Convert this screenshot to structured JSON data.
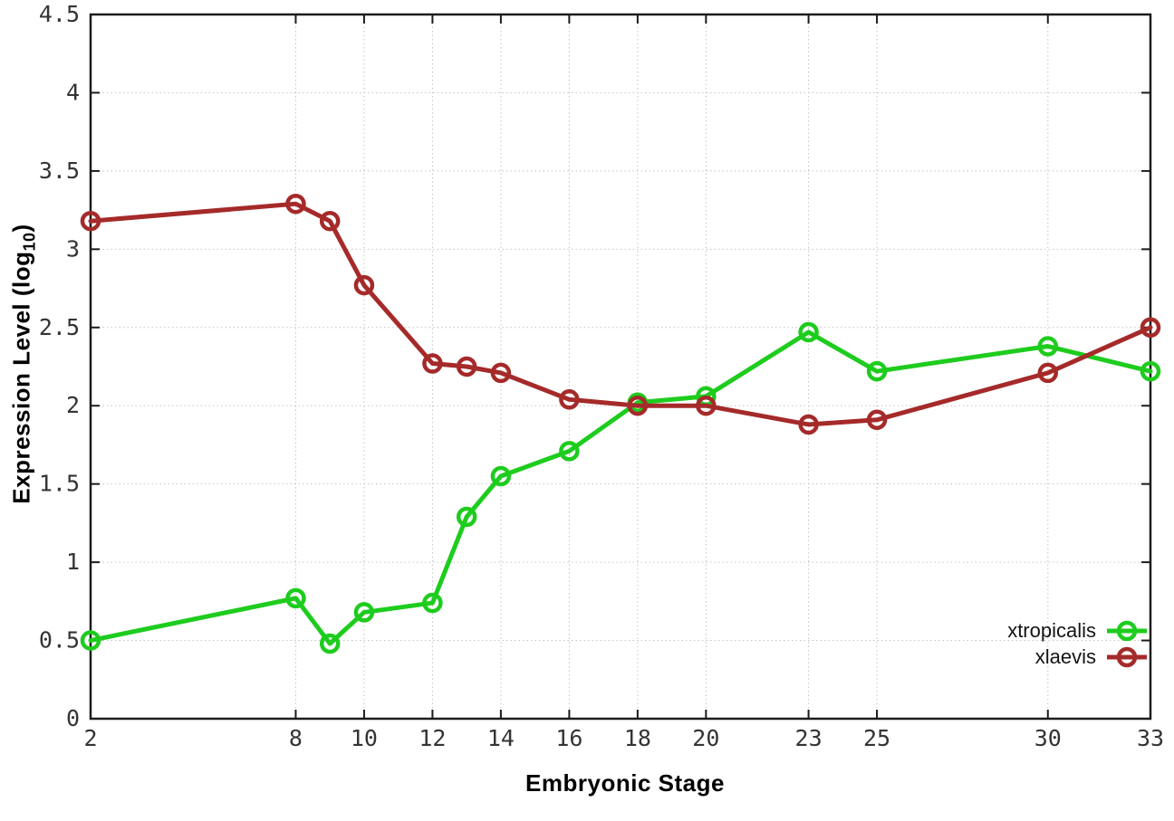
{
  "chart_data": {
    "type": "line",
    "title": "",
    "xlabel": "Embryonic Stage",
    "ylabel_parts": {
      "pre": "Expression Level (log",
      "sub": "10",
      "post": ")"
    },
    "xlim": [
      2,
      33
    ],
    "ylim": [
      0,
      4.5
    ],
    "grid": true,
    "legend_position": "inside bottom-right",
    "x_ticks": [
      {
        "value": 2,
        "label": "2"
      },
      {
        "value": 8,
        "label": "8"
      },
      {
        "value": 10,
        "label": "10"
      },
      {
        "value": 12,
        "label": "12"
      },
      {
        "value": 14,
        "label": "14"
      },
      {
        "value": 16,
        "label": "16"
      },
      {
        "value": 18,
        "label": "18"
      },
      {
        "value": 20,
        "label": "20"
      },
      {
        "value": 23,
        "label": "23"
      },
      {
        "value": 25,
        "label": "25"
      },
      {
        "value": 30,
        "label": "30"
      },
      {
        "value": 33,
        "label": "33"
      }
    ],
    "y_ticks": [
      {
        "value": 0,
        "label": "0"
      },
      {
        "value": 0.5,
        "label": "0.5"
      },
      {
        "value": 1,
        "label": "1"
      },
      {
        "value": 1.5,
        "label": "1.5"
      },
      {
        "value": 2,
        "label": "2"
      },
      {
        "value": 2.5,
        "label": "2.5"
      },
      {
        "value": 3,
        "label": "3"
      },
      {
        "value": 3.5,
        "label": "3.5"
      },
      {
        "value": 4,
        "label": "4"
      },
      {
        "value": 4.5,
        "label": "4.5"
      }
    ],
    "x": [
      2,
      8,
      9,
      10,
      12,
      13,
      14,
      16,
      18,
      20,
      23,
      25,
      30,
      33
    ],
    "series": [
      {
        "name": "xtropicalis",
        "color": "#1ecc1e",
        "values": [
          0.5,
          0.77,
          0.48,
          0.68,
          0.74,
          1.29,
          1.55,
          1.71,
          2.02,
          2.06,
          2.47,
          2.22,
          2.38,
          2.22
        ]
      },
      {
        "name": "xlaevis",
        "color": "#a52a2a",
        "values": [
          3.18,
          3.29,
          3.18,
          2.77,
          2.27,
          2.25,
          2.21,
          2.04,
          2.0,
          2.0,
          1.88,
          1.91,
          2.21,
          2.5
        ]
      }
    ],
    "style": {
      "border_color": "#1c1c1c",
      "grid_color": "#c3c3c3",
      "tick_label_color": "#343434",
      "background": "#ffffff"
    }
  }
}
